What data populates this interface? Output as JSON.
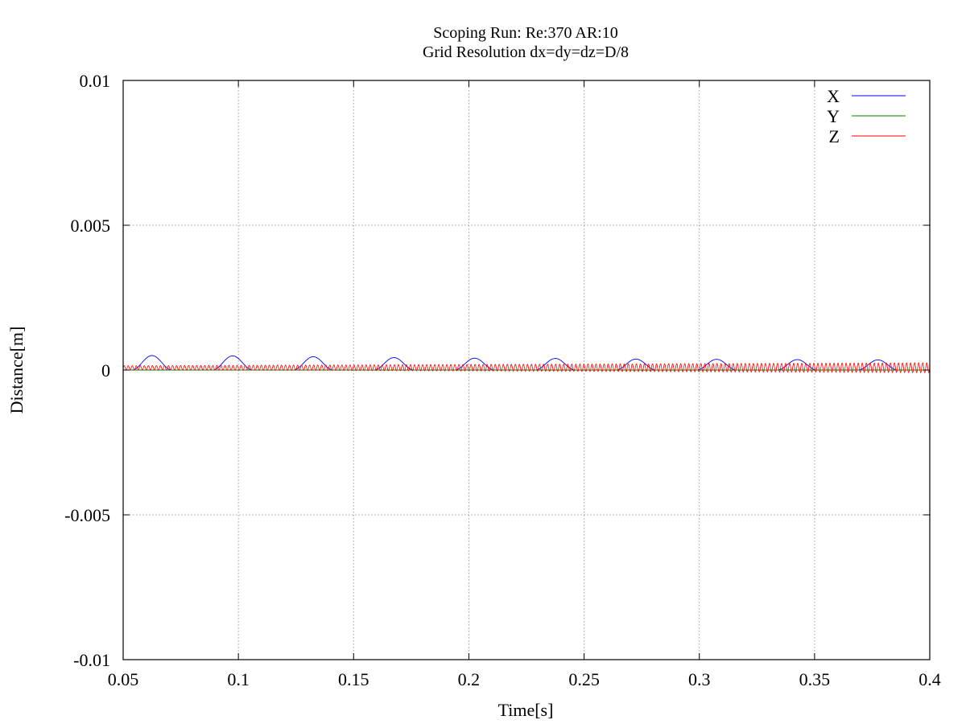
{
  "chart_data": {
    "type": "line",
    "title": "Scoping Run: Re:370  AR:10",
    "subtitle": "Grid Resolution dx=dy=dz=D/8",
    "xlabel": "Time[s]",
    "ylabel": "Distance[m]",
    "xlim": [
      0.05,
      0.4
    ],
    "ylim": [
      -0.01,
      0.01
    ],
    "xticks": [
      "0.05",
      "0.1",
      "0.15",
      "0.2",
      "0.25",
      "0.3",
      "0.35",
      "0.4"
    ],
    "yticks": [
      "0.01",
      "0.005",
      "0",
      "-0.005",
      "-0.01"
    ],
    "grid": true,
    "legend_position": "top-right",
    "series": [
      {
        "name": "X",
        "color": "#0000ff",
        "description_of_shape": "periodic arch oscillation, period ~0.0175 s, amplitude decaying from ~0.0005 to ~0.00035",
        "x": [
          0.05,
          0.0575,
          0.0625,
          0.0675,
          0.075,
          0.08,
          0.085,
          0.0925,
          0.0975,
          0.1025,
          0.11,
          0.115,
          0.12,
          0.1275,
          0.1325,
          0.1375,
          0.145,
          0.15,
          0.155,
          0.1625,
          0.1675,
          0.1725,
          0.18,
          0.185,
          0.19,
          0.1975,
          0.2025,
          0.2075,
          0.215,
          0.22,
          0.225,
          0.2325,
          0.2375,
          0.2425,
          0.25,
          0.255,
          0.26,
          0.2675,
          0.2725,
          0.2775,
          0.285,
          0.29,
          0.295,
          0.3025,
          0.3075,
          0.3125,
          0.32,
          0.325,
          0.33,
          0.3375,
          0.3425,
          0.3475,
          0.355,
          0.36,
          0.365,
          0.3725,
          0.3775,
          0.3825,
          0.39,
          0.395,
          0.4
        ],
        "values": [
          3e-05,
          1e-05,
          0.0005,
          1e-05,
          1e-05,
          0.0005,
          1e-05,
          1e-05,
          0.00049,
          1e-05,
          1e-05,
          0.00047,
          1e-05,
          1e-05,
          0.00046,
          1e-05,
          1e-05,
          0.00045,
          1e-05,
          1e-05,
          0.00043,
          1e-05,
          1e-05,
          0.00042,
          1e-05,
          1e-05,
          0.00041,
          1e-05,
          1e-05,
          0.0004,
          1e-05,
          1e-05,
          0.0004,
          1e-05,
          1e-05,
          0.00039,
          1e-05,
          1e-05,
          0.00038,
          1e-05,
          1e-05,
          0.00038,
          1e-05,
          1e-05,
          0.00037,
          1e-05,
          1e-05,
          0.00037,
          1e-05,
          1e-05,
          0.00036,
          1e-05,
          1e-05,
          0.00036,
          1e-05,
          1e-05,
          0.00035,
          1e-05,
          1e-05,
          0.00035,
          5e-05
        ]
      },
      {
        "name": "Y",
        "color": "#008000",
        "x": [
          0.05,
          0.4
        ],
        "values": [
          0.0,
          0.0
        ]
      },
      {
        "name": "Z",
        "color": "#ff0000",
        "x_start": 0.05,
        "x_end": 0.4,
        "center": 8e-05,
        "amplitude_start": 7e-05,
        "amplitude_end": 0.00017,
        "period": 0.00175
      }
    ]
  }
}
